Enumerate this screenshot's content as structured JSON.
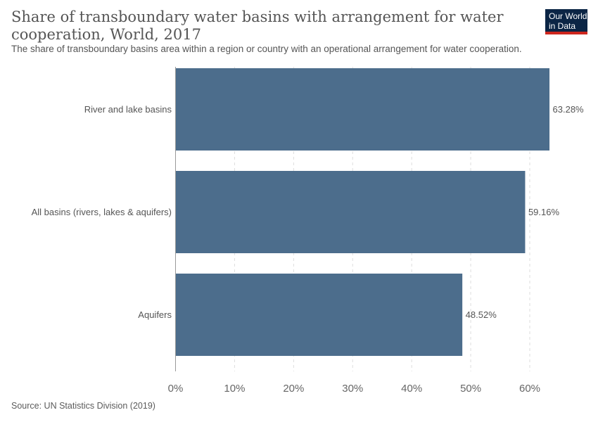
{
  "header": {
    "title": "Share of transboundary water basins with arrangement for water cooperation, World, 2017",
    "subtitle": "The share of transboundary basins area within a region or country with an operational arrangement for water cooperation."
  },
  "logo": {
    "line1": "Our World",
    "line2": "in Data",
    "bg_color": "#0b2545",
    "accent_color": "#ce261e"
  },
  "source": "Source: UN Statistics Division (2019)",
  "chart_data": {
    "type": "bar",
    "orientation": "horizontal",
    "categories": [
      "River and lake basins",
      "All basins (rivers, lakes & aquifers)",
      "Aquifers"
    ],
    "values": [
      63.28,
      59.16,
      48.52
    ],
    "value_labels": [
      "63.28%",
      "59.16%",
      "48.52%"
    ],
    "xlim": [
      0,
      60
    ],
    "xticks": [
      0,
      10,
      20,
      30,
      40,
      50,
      60
    ],
    "xtick_labels": [
      "0%",
      "10%",
      "20%",
      "30%",
      "40%",
      "50%",
      "60%"
    ],
    "grid": "vertical dashed",
    "bar_color": "#4c6d8c"
  }
}
